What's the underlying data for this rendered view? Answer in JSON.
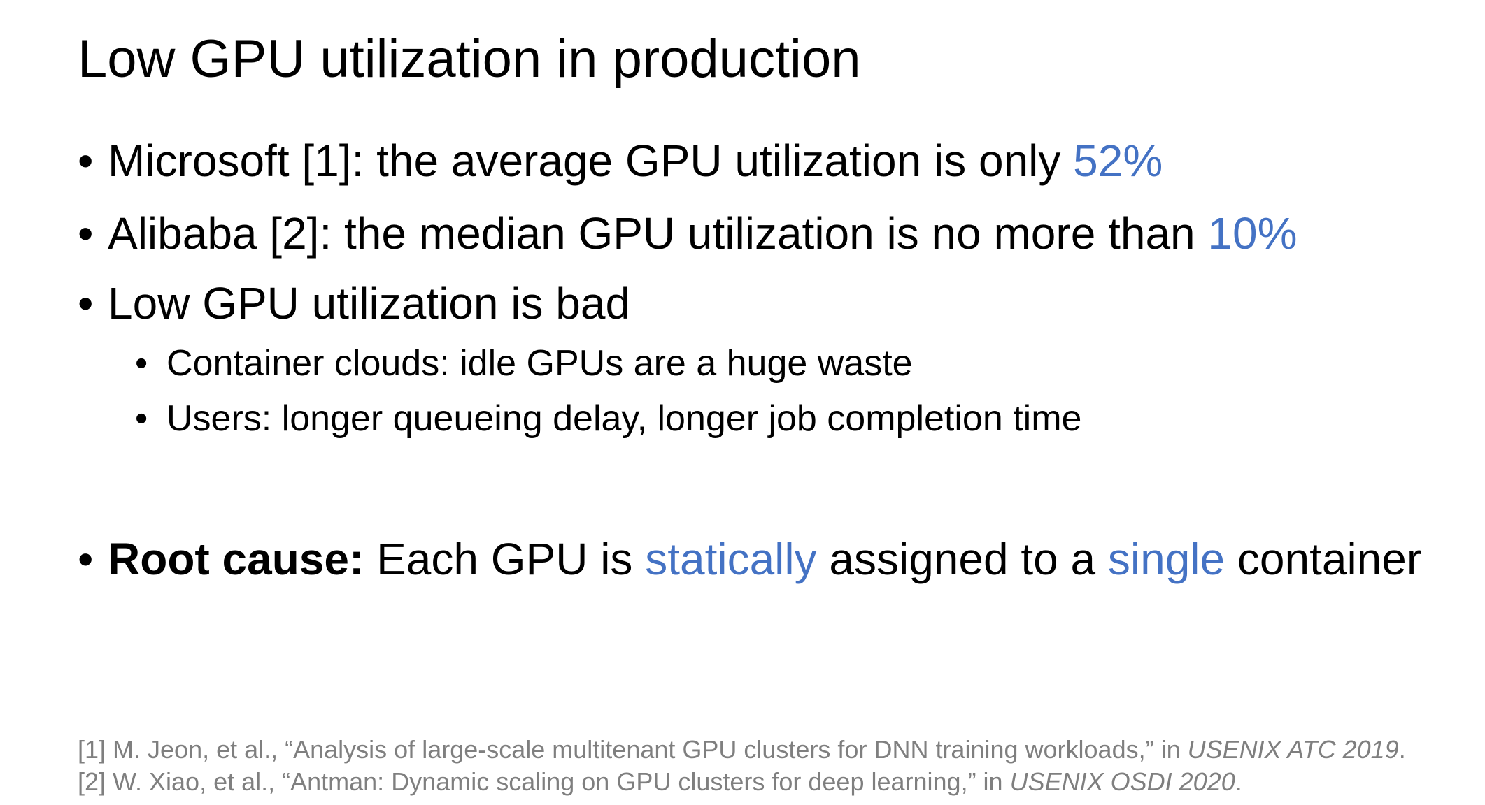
{
  "slide": {
    "title": "Low GPU utilization in production",
    "bullets": [
      {
        "marker": "•",
        "text": "Microsoft [1]: the average GPU utilization is only ",
        "highlight": "52%"
      },
      {
        "marker": "•",
        "text": "Alibaba [2]: the median GPU utilization is no more than ",
        "highlight": "10%"
      },
      {
        "marker": "•",
        "text": "Low GPU utilization is bad",
        "sub": [
          {
            "marker": "•",
            "text": "Container clouds: idle GPUs are a huge waste"
          },
          {
            "marker": "•",
            "text": "Users: longer queueing delay, longer job completion time"
          }
        ]
      }
    ],
    "root_cause": {
      "marker": "•",
      "label": "Root cause:",
      "text_1": " Each GPU is ",
      "highlight_1": "statically",
      "text_2": " assigned to a ",
      "highlight_2": "single",
      "text_3": " container"
    },
    "references": [
      {
        "prefix": "[1] M. Jeon, et al., “Analysis of large-scale multitenant GPU clusters for DNN training workloads,” in ",
        "venue": "USENIX ATC 2019",
        "suffix": "."
      },
      {
        "prefix": "[2] W. Xiao, et al., “Antman: Dynamic scaling on GPU clusters for deep learning,” in ",
        "venue": "USENIX OSDI 2020",
        "suffix": "."
      }
    ]
  },
  "colors": {
    "accent": "#4472c4",
    "text": "#000000",
    "reference": "#7f7f7f",
    "background": "#ffffff"
  }
}
